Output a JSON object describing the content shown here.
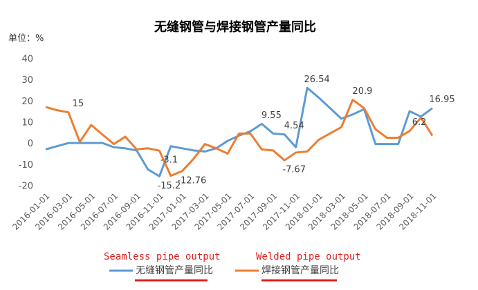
{
  "chart_data": {
    "type": "line",
    "title": "无缝钢管与焊接钢管产量同比",
    "y_label": "单位：%",
    "categories": [
      "2016-01-01",
      null,
      "2016-03-01",
      null,
      "2016-05-01",
      null,
      "2016-07-01",
      null,
      "2016-09-01",
      null,
      "2016-11-01",
      null,
      "2017-01-01",
      null,
      "2017-03-01",
      null,
      "2017-05-01",
      null,
      "2017-07-01",
      null,
      "2017-09-01",
      null,
      "2017-11-01",
      null,
      "2018-01-01",
      null,
      "2018-03-01",
      null,
      "2018-05-01",
      null,
      "2018-07-01",
      null,
      "2018-09-01",
      null,
      "2018-11-01"
    ],
    "series": [
      {
        "name": "无缝钢管产量同比",
        "color": "#5b9bd5",
        "values": [
          -2.5,
          -1,
          0.5,
          0.5,
          0.5,
          0.5,
          -1.5,
          -2,
          -3,
          -12,
          -15.2,
          -1,
          -2,
          -3,
          -3.5,
          -2,
          1.5,
          4,
          6,
          9.55,
          5,
          4.54,
          -1.5,
          26.54,
          22,
          17,
          12,
          14,
          16.5,
          0,
          0,
          0,
          15.5,
          13,
          16.95
        ],
        "value_labels": [
          null,
          null,
          null,
          null,
          null,
          null,
          null,
          null,
          null,
          null,
          "-15.2",
          null,
          null,
          null,
          null,
          null,
          null,
          null,
          null,
          "9.55",
          null,
          "4.54",
          null,
          "26.54",
          null,
          null,
          null,
          null,
          null,
          null,
          null,
          null,
          null,
          null,
          "16.95"
        ]
      },
      {
        "name": "焊接钢管产量同比",
        "color": "#ed7d31",
        "values": [
          17.5,
          16,
          15,
          1,
          9,
          4.5,
          0,
          3.5,
          -2.5,
          -2,
          -3.1,
          -15,
          -12.76,
          -7,
          0,
          -2,
          -4.5,
          5,
          5,
          -2.5,
          -3,
          -7.67,
          -4,
          -3.5,
          2,
          5,
          8,
          20.9,
          17,
          7,
          3,
          3,
          6.2,
          12.5,
          4
        ],
        "value_labels": [
          null,
          null,
          "15",
          null,
          null,
          null,
          null,
          null,
          null,
          null,
          "-3.1",
          null,
          "-12.76",
          null,
          null,
          null,
          null,
          null,
          null,
          null,
          null,
          "-7.67",
          null,
          null,
          null,
          null,
          null,
          "20.9",
          null,
          null,
          null,
          null,
          "6.2",
          null,
          null
        ]
      }
    ],
    "ylim": [
      -20,
      40
    ],
    "yticks": [
      -20,
      -10,
      0,
      10,
      20,
      30,
      40
    ],
    "annotations": [
      "Seamless pipe output",
      "Welded pipe output"
    ]
  }
}
